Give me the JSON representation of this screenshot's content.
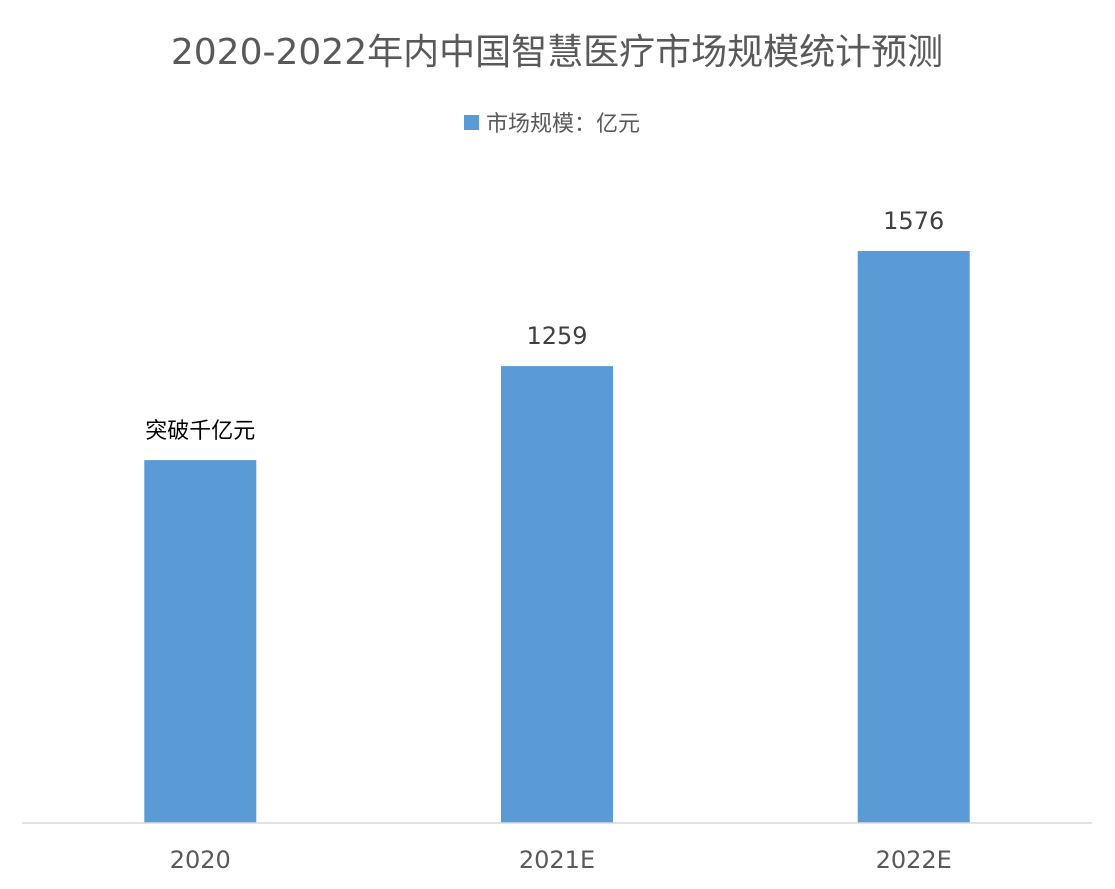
{
  "chart_data": {
    "type": "bar",
    "title": "2020-2022年内中国智慧医疗市场规模统计预测",
    "categories": [
      "2020",
      "2021E",
      "2022E"
    ],
    "series": [
      {
        "name": "市场规模：亿元",
        "values": [
          1000,
          1259,
          1576
        ],
        "labels": [
          "突破千亿元",
          "1259",
          "1576"
        ]
      }
    ],
    "xlabel": "",
    "ylabel": "",
    "ylim": [
      0,
      1576
    ],
    "grid": false,
    "legend": "top-center",
    "colors": {
      "bar": "#5b9bd5",
      "axis": "#d9d9d9"
    }
  }
}
